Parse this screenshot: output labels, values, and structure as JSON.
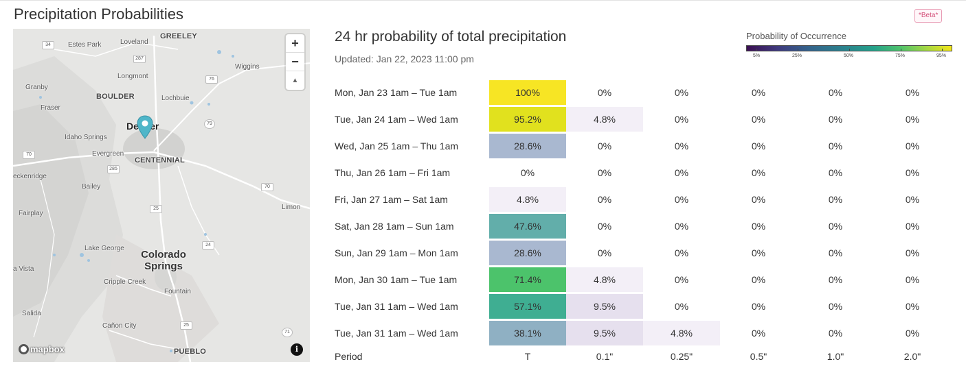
{
  "page": {
    "title": "Precipitation Probabilities",
    "beta_badge": "*Beta*"
  },
  "map": {
    "zoom_in": "+",
    "zoom_out": "−",
    "compass": "▲",
    "attribution": "mapbox",
    "info": "i",
    "labels": {
      "greeley": "GREELEY",
      "estes_park": "Estes Park",
      "loveland": "Loveland",
      "wiggins": "Wiggins",
      "longmont": "Longmont",
      "granby": "Granby",
      "boulder": "BOULDER",
      "lochbuie": "Lochbuie",
      "fraser": "Fraser",
      "denver": "Denver",
      "idaho_springs": "Idaho Springs",
      "evergreen": "Evergreen",
      "centennial": "CENTENNIAL",
      "breckenridge": "eckenridge",
      "bailey": "Bailey",
      "limon": "Limon",
      "fairplay": "Fairplay",
      "lake_george": "Lake George",
      "colorado_springs": "Colorado Springs",
      "buena_vista": "a Vista",
      "cripple_creek": "Cripple Creek",
      "fountain": "Fountain",
      "salida": "Salida",
      "canon_city": "Cañon City",
      "pueblo": "PUEBLO"
    },
    "shields": {
      "s34": "34",
      "s287": "287",
      "s76": "76",
      "s79": "79",
      "s70w": "70",
      "s285": "285",
      "s70e": "70",
      "s25a": "25",
      "s24": "24",
      "s25b": "25",
      "s71": "71"
    }
  },
  "panel": {
    "title": "24 hr probability of total precipitation",
    "updated": "Updated: Jan 22, 2023 11:00 pm"
  },
  "legend": {
    "title": "Probability of Occurrence",
    "ticks": [
      "5%",
      "25%",
      "50%",
      "75%",
      "95%"
    ]
  },
  "table": {
    "rows": [
      {
        "period": "Mon, Jan 23 1am – Tue 1am",
        "values": [
          "100%",
          "0%",
          "0%",
          "0%",
          "0%",
          "0%"
        ],
        "colors": [
          "#f7e524",
          "",
          "",
          "",
          "",
          ""
        ]
      },
      {
        "period": "Tue, Jan 24 1am – Wed 1am",
        "values": [
          "95.2%",
          "4.8%",
          "0%",
          "0%",
          "0%",
          "0%"
        ],
        "colors": [
          "#e1e11e",
          "#f3eff7",
          "",
          "",
          "",
          ""
        ]
      },
      {
        "period": "Wed, Jan 25 1am – Thu 1am",
        "values": [
          "28.6%",
          "0%",
          "0%",
          "0%",
          "0%",
          "0%"
        ],
        "colors": [
          "#a9b8d0",
          "",
          "",
          "",
          "",
          ""
        ]
      },
      {
        "period": "Thu, Jan 26 1am – Fri 1am",
        "values": [
          "0%",
          "0%",
          "0%",
          "0%",
          "0%",
          "0%"
        ],
        "colors": [
          "",
          "",
          "",
          "",
          "",
          ""
        ]
      },
      {
        "period": "Fri, Jan 27 1am – Sat 1am",
        "values": [
          "4.8%",
          "0%",
          "0%",
          "0%",
          "0%",
          "0%"
        ],
        "colors": [
          "#f3eff7",
          "",
          "",
          "",
          "",
          ""
        ]
      },
      {
        "period": "Sat, Jan 28 1am – Sun 1am",
        "values": [
          "47.6%",
          "0%",
          "0%",
          "0%",
          "0%",
          "0%"
        ],
        "colors": [
          "#62aeaa",
          "",
          "",
          "",
          "",
          ""
        ]
      },
      {
        "period": "Sun, Jan 29 1am – Mon 1am",
        "values": [
          "28.6%",
          "0%",
          "0%",
          "0%",
          "0%",
          "0%"
        ],
        "colors": [
          "#a9b8d0",
          "",
          "",
          "",
          "",
          ""
        ]
      },
      {
        "period": "Mon, Jan 30 1am – Tue 1am",
        "values": [
          "71.4%",
          "4.8%",
          "0%",
          "0%",
          "0%",
          "0%"
        ],
        "colors": [
          "#4cc36b",
          "#f3eff7",
          "",
          "",
          "",
          ""
        ]
      },
      {
        "period": "Tue, Jan 31 1am – Wed 1am",
        "values": [
          "57.1%",
          "9.5%",
          "0%",
          "0%",
          "0%",
          "0%"
        ],
        "colors": [
          "#3fae92",
          "#e6e0ee",
          "",
          "",
          "",
          ""
        ]
      },
      {
        "period": "Tue, Jan 31 1am – Wed 1am",
        "values": [
          "38.1%",
          "9.5%",
          "4.8%",
          "0%",
          "0%",
          "0%"
        ],
        "colors": [
          "#8fb0c3",
          "#e6e0ee",
          "#f3eff7",
          "",
          "",
          ""
        ]
      }
    ],
    "footer": {
      "period_label": "Period",
      "thresholds": [
        "T",
        "0.1\"",
        "0.25\"",
        "0.5\"",
        "1.0\"",
        "2.0\""
      ]
    }
  }
}
